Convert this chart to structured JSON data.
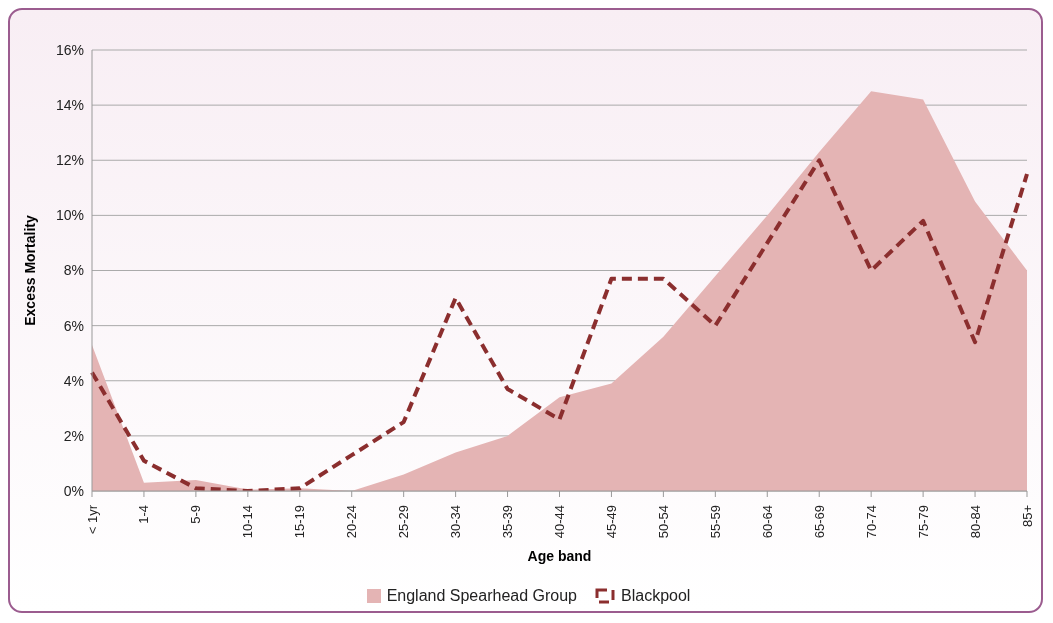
{
  "chart_data": {
    "type": "area",
    "xlabel": "Age band",
    "ylabel": "Excess Mortality",
    "categories": [
      "< 1yr",
      "1-4",
      "5-9",
      "10-14",
      "15-19",
      "20-24",
      "25-29",
      "30-34",
      "35-39",
      "40-44",
      "45-49",
      "50-54",
      "55-59",
      "60-64",
      "65-69",
      "70-74",
      "75-79",
      "80-84",
      "85+"
    ],
    "series": [
      {
        "name": "England Spearhead Group",
        "color": "#e4b4b4",
        "values": [
          5.3,
          0.3,
          0.4,
          0.05,
          0.1,
          0.0,
          0.6,
          1.4,
          2.0,
          3.4,
          3.9,
          5.6,
          7.8,
          10.0,
          12.3,
          14.5,
          14.2,
          10.5,
          8.0
        ]
      },
      {
        "name": "Blackpool",
        "type": "line",
        "color": "#8b2e2e",
        "line_style": "dashed",
        "values": [
          4.3,
          1.1,
          0.1,
          0.0,
          0.1,
          1.3,
          2.5,
          7.0,
          3.7,
          2.6,
          7.7,
          7.7,
          6.0,
          9.0,
          12.0,
          8.0,
          9.8,
          5.4,
          11.5
        ]
      }
    ],
    "ylim": [
      0,
      16
    ],
    "yticks": [
      {
        "value": 0,
        "label": "0%"
      },
      {
        "value": 2,
        "label": "2%"
      },
      {
        "value": 4,
        "label": "4%"
      },
      {
        "value": 6,
        "label": "6%"
      },
      {
        "value": 8,
        "label": "8%"
      },
      {
        "value": 10,
        "label": "10%"
      },
      {
        "value": 12,
        "label": "12%"
      },
      {
        "value": 14,
        "label": "14%"
      },
      {
        "value": 16,
        "label": "16%"
      }
    ],
    "grid": "y",
    "legend": "bottom",
    "marker": "none"
  }
}
